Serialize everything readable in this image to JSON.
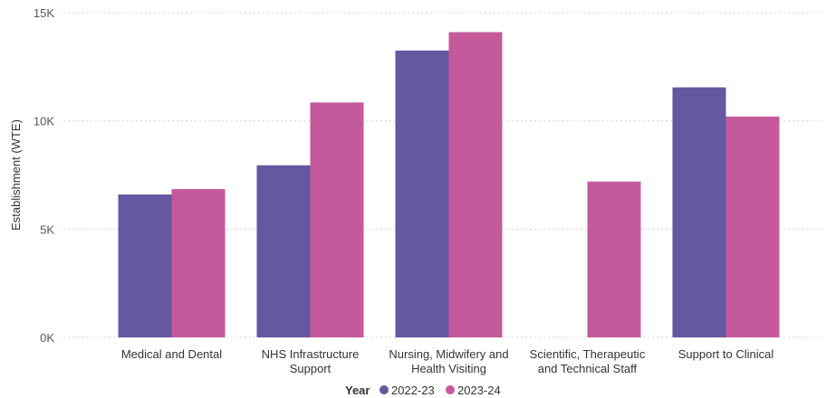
{
  "chart_data": {
    "type": "bar",
    "title": "",
    "xlabel": "",
    "ylabel": "Establishment (WTE)",
    "ylim": [
      0,
      15000
    ],
    "yticks": [
      {
        "value": 0,
        "label": "0K"
      },
      {
        "value": 5000,
        "label": "5K"
      },
      {
        "value": 10000,
        "label": "10K"
      },
      {
        "value": 15000,
        "label": "15K"
      }
    ],
    "grid": true,
    "legend_title": "Year",
    "legend_position": "bottom",
    "categories": [
      [
        "Medical and Dental"
      ],
      [
        "NHS Infrastructure",
        "Support"
      ],
      [
        "Nursing, Midwifery and",
        "Health Visiting"
      ],
      [
        "Scientific, Therapeutic",
        "and Technical Staff"
      ],
      [
        "Support to Clinical"
      ]
    ],
    "series": [
      {
        "name": "2022-23",
        "color": "#6557A0",
        "values": [
          6600,
          7950,
          13250,
          null,
          11550
        ]
      },
      {
        "name": "2023-24",
        "color": "#C45A9B",
        "values": [
          6850,
          10850,
          14100,
          7200,
          10200
        ]
      }
    ]
  }
}
